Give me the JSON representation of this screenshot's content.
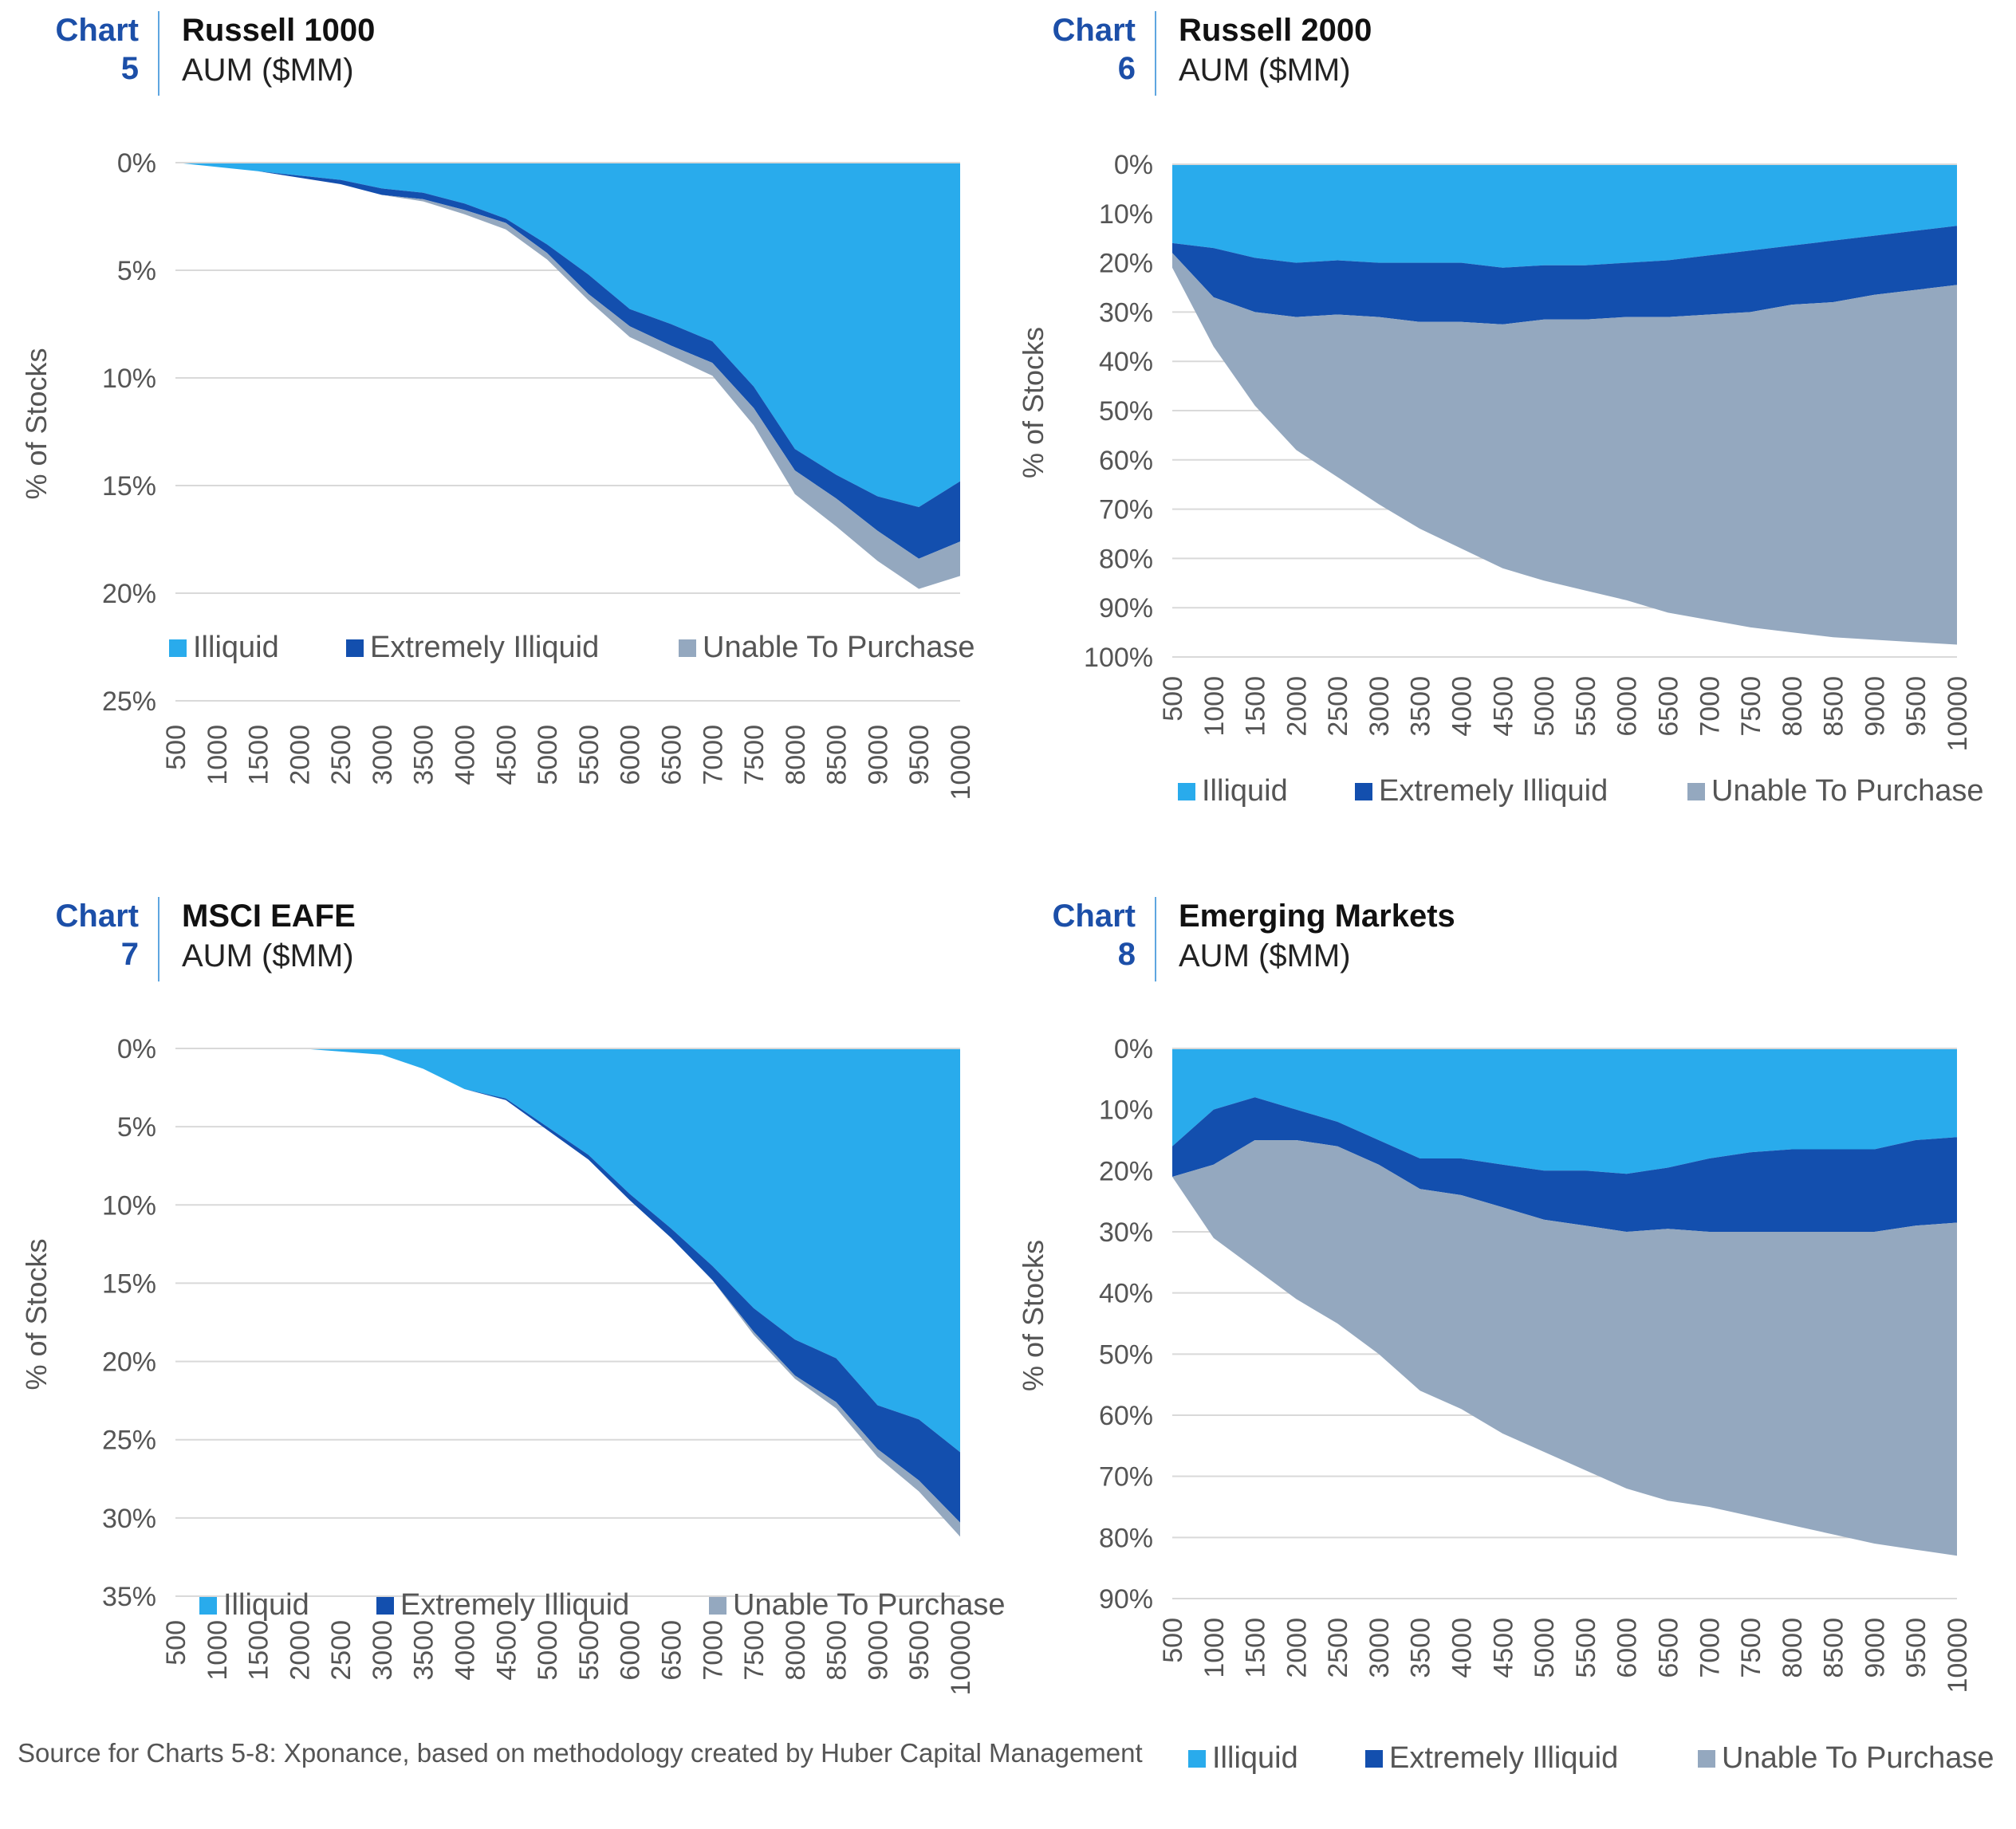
{
  "colors": {
    "illiquid": "#29abec",
    "extremely_illiquid": "#134fae",
    "unable_to_purchase": "#94a8bf",
    "chart_label": "#1c4fa8",
    "grid": "#d9d9d9",
    "axis_text": "#555555"
  },
  "panels": [
    {
      "chart_label": "Chart",
      "chart_number": "5",
      "title": "Russell 1000",
      "subtitle": "AUM ($MM)"
    },
    {
      "chart_label": "Chart",
      "chart_number": "6",
      "title": "Russell 2000",
      "subtitle": "AUM ($MM)"
    },
    {
      "chart_label": "Chart",
      "chart_number": "7",
      "title": "MSCI EAFE",
      "subtitle": "AUM ($MM)"
    },
    {
      "chart_label": "Chart",
      "chart_number": "8",
      "title": "Emerging Markets",
      "subtitle": "AUM ($MM)"
    }
  ],
  "chart_data": [
    {
      "type": "area",
      "stacked": true,
      "ylabel": "%  of Stocks",
      "ylim": [
        0,
        25
      ],
      "y_inverted": true,
      "ytick_values": [
        0,
        5,
        10,
        15,
        20,
        25
      ],
      "ytick_labels": [
        "0%",
        "5%",
        "10%",
        "15%",
        "20%",
        "25%"
      ],
      "x": [
        "500",
        "1000",
        "1500",
        "2000",
        "2500",
        "3000",
        "3500",
        "4000",
        "4500",
        "5000",
        "5500",
        "6000",
        "6500",
        "7000",
        "7500",
        "8000",
        "8500",
        "9000",
        "9500",
        "10000"
      ],
      "legend_position": "inside-bottom",
      "grid": true,
      "series": [
        {
          "name": "Illiquid",
          "values": [
            0,
            0.2,
            0.4,
            0.6,
            0.8,
            1.2,
            1.4,
            1.9,
            2.6,
            3.8,
            5.2,
            6.8,
            7.5,
            8.3,
            10.4,
            13.3,
            14.5,
            15.5,
            16.0,
            14.8
          ]
        },
        {
          "name": "Extremely Illiquid",
          "values": [
            0,
            0,
            0,
            0.1,
            0.2,
            0.3,
            0.3,
            0.3,
            0.2,
            0.4,
            0.9,
            0.8,
            1.0,
            1.0,
            1.0,
            1.0,
            1.1,
            1.6,
            2.4,
            2.8
          ]
        },
        {
          "name": "Unable To Purchase",
          "values": [
            0,
            0,
            0,
            0,
            0,
            0,
            0.1,
            0.2,
            0.3,
            0.3,
            0.3,
            0.5,
            0.5,
            0.6,
            0.8,
            1.1,
            1.3,
            1.4,
            1.4,
            1.6
          ]
        }
      ]
    },
    {
      "type": "area",
      "stacked": true,
      "ylabel": "%  of Stocks",
      "ylim": [
        0,
        100
      ],
      "y_inverted": true,
      "ytick_values": [
        0,
        10,
        20,
        30,
        40,
        50,
        60,
        70,
        80,
        90,
        100
      ],
      "ytick_labels": [
        "0%",
        "10%",
        "20%",
        "30%",
        "40%",
        "50%",
        "60%",
        "70%",
        "80%",
        "90%",
        "100%"
      ],
      "x": [
        "500",
        "1000",
        "1500",
        "2000",
        "2500",
        "3000",
        "3500",
        "4000",
        "4500",
        "5000",
        "5500",
        "6000",
        "6500",
        "7000",
        "7500",
        "8000",
        "8500",
        "9000",
        "9500",
        "10000"
      ],
      "legend_position": "bottom",
      "grid": true,
      "series": [
        {
          "name": "Illiquid",
          "values": [
            16,
            17,
            19,
            20,
            19.5,
            20,
            20,
            20,
            21,
            20.5,
            20.5,
            20,
            19.5,
            18.5,
            17.5,
            16.5,
            15.5,
            14.5,
            13.5,
            12.5
          ]
        },
        {
          "name": "Extremely Illiquid",
          "values": [
            2,
            10,
            11,
            11,
            11,
            11,
            12,
            12,
            11.5,
            11,
            11,
            11,
            11.5,
            12,
            12.5,
            12,
            12.5,
            12,
            12,
            12
          ]
        },
        {
          "name": "Unable To Purchase",
          "values": [
            3,
            10,
            19,
            27,
            33,
            38,
            42,
            46,
            49.5,
            53,
            55,
            57.5,
            60,
            62,
            64,
            66.5,
            68,
            70,
            71.5,
            73
          ]
        }
      ]
    },
    {
      "type": "area",
      "stacked": true,
      "ylabel": "%  of Stocks",
      "ylim": [
        0,
        35
      ],
      "y_inverted": true,
      "ytick_values": [
        0,
        5,
        10,
        15,
        20,
        25,
        30,
        35
      ],
      "ytick_labels": [
        "0%",
        "5%",
        "10%",
        "15%",
        "20%",
        "25%",
        "30%",
        "35%"
      ],
      "x": [
        "500",
        "1000",
        "1500",
        "2000",
        "2500",
        "3000",
        "3500",
        "4000",
        "4500",
        "5000",
        "5500",
        "6000",
        "6500",
        "7000",
        "7500",
        "8000",
        "8500",
        "9000",
        "9500",
        "10000"
      ],
      "legend_position": "inside-bottom",
      "grid": true,
      "series": [
        {
          "name": "Illiquid",
          "values": [
            0,
            0,
            0,
            0,
            0.2,
            0.4,
            1.3,
            2.6,
            3.2,
            5.0,
            6.8,
            9.3,
            11.5,
            13.9,
            16.6,
            18.6,
            19.8,
            22.8,
            23.7,
            25.8
          ]
        },
        {
          "name": "Extremely Illiquid",
          "values": [
            0,
            0,
            0,
            0,
            0,
            0,
            0,
            0,
            0.1,
            0.2,
            0.3,
            0.4,
            0.6,
            0.9,
            1.5,
            2.3,
            2.8,
            2.8,
            3.9,
            4.5
          ]
        },
        {
          "name": "Unable To Purchase",
          "values": [
            0,
            0,
            0,
            0,
            0,
            0,
            0,
            0,
            0,
            0,
            0,
            0,
            0,
            0,
            0.2,
            0.2,
            0.4,
            0.5,
            0.7,
            0.9
          ]
        }
      ]
    },
    {
      "type": "area",
      "stacked": true,
      "ylabel": "%  of Stocks",
      "ylim": [
        0,
        90
      ],
      "y_inverted": true,
      "ytick_values": [
        0,
        10,
        20,
        30,
        40,
        50,
        60,
        70,
        80,
        90
      ],
      "ytick_labels": [
        "0%",
        "10%",
        "20%",
        "30%",
        "40%",
        "50%",
        "60%",
        "70%",
        "80%",
        "90%"
      ],
      "x": [
        "500",
        "1000",
        "1500",
        "2000",
        "2500",
        "3000",
        "3500",
        "4000",
        "4500",
        "5000",
        "5500",
        "6000",
        "6500",
        "7000",
        "7500",
        "8000",
        "8500",
        "9000",
        "9500",
        "10000"
      ],
      "legend_position": "bottom",
      "grid": true,
      "series": [
        {
          "name": "Illiquid",
          "values": [
            16,
            10,
            8,
            10,
            12,
            15,
            18,
            18,
            19,
            20,
            20,
            20.5,
            19.5,
            18,
            17,
            16.5,
            16.5,
            16.5,
            15,
            14.5
          ]
        },
        {
          "name": "Extremely Illiquid",
          "values": [
            5,
            9,
            7,
            5,
            4,
            4,
            5,
            6,
            7,
            8,
            9,
            9.5,
            10,
            12,
            13,
            13.5,
            13.5,
            13.5,
            14,
            14
          ]
        },
        {
          "name": "Unable To Purchase",
          "values": [
            0,
            12,
            21,
            26,
            29,
            31,
            33,
            35,
            37,
            38,
            40,
            42,
            44.5,
            45,
            46.5,
            48,
            49.5,
            51,
            53,
            54.5
          ]
        }
      ]
    }
  ],
  "source_note": "Source for Charts 5-8: Xponance, based on methodology created by Huber Capital Management"
}
